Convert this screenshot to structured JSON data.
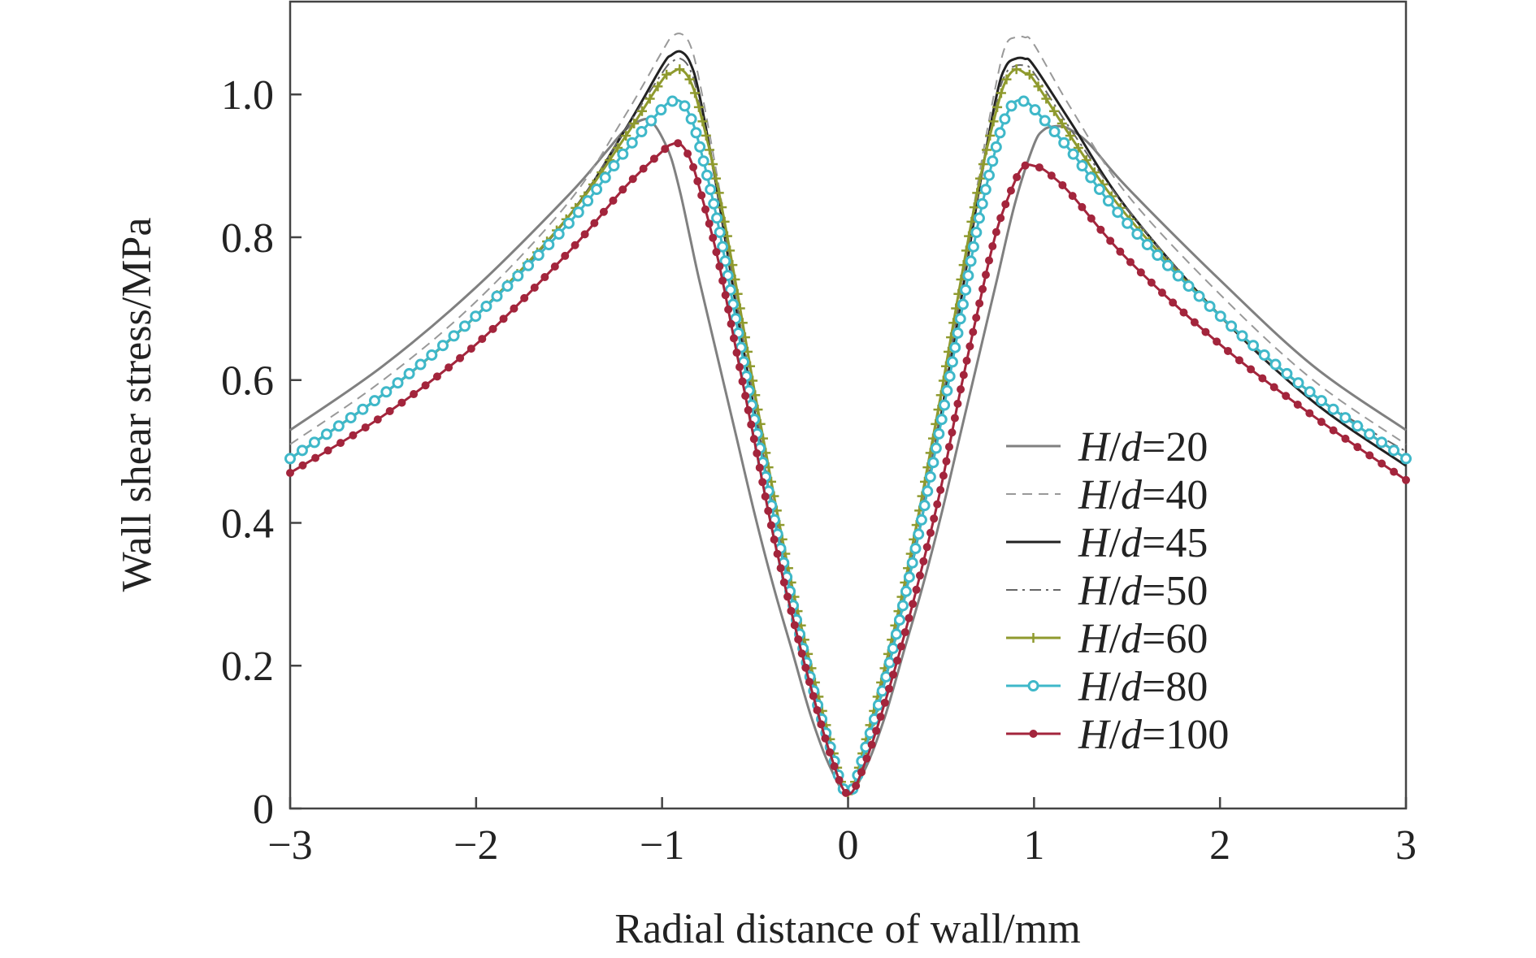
{
  "chart_data": {
    "type": "line",
    "title": "",
    "xlabel": "Radial distance of wall/mm",
    "ylabel": "Wall shear stress/MPa",
    "xlim": [
      -3,
      3
    ],
    "ylim": [
      0,
      1.13
    ],
    "x_ticks": [
      -3,
      -2,
      -1,
      0,
      1,
      2,
      3
    ],
    "x_tick_labels": [
      "−3",
      "−2",
      "−1",
      "0",
      "1",
      "2",
      "3"
    ],
    "y_ticks": [
      0,
      0.2,
      0.4,
      0.6,
      0.8,
      1.0
    ],
    "y_tick_labels": [
      "0",
      "0.2",
      "0.4",
      "0.6",
      "0.8",
      "1.0"
    ],
    "grid": false,
    "legend_position": "right",
    "series": [
      {
        "name": "H/d=20",
        "legend_italic": "H",
        "legend_mid": "/",
        "legend_italic2": "d",
        "legend_rest": "=20",
        "color": "#808080",
        "dash": "solid",
        "marker": "none",
        "x": [
          -3.0,
          -2.5,
          -2.0,
          -1.5,
          -1.3,
          -1.2,
          -1.1,
          -1.05,
          -1.0,
          -0.95,
          -0.9,
          -0.85,
          -0.8,
          -0.7,
          -0.6,
          -0.5,
          -0.4,
          -0.3,
          -0.2,
          -0.1,
          0.0,
          0.1,
          0.2,
          0.3,
          0.4,
          0.5,
          0.6,
          0.7,
          0.8,
          0.9,
          1.0,
          1.05,
          1.1,
          1.15,
          1.2,
          1.3,
          1.5,
          2.0,
          2.5,
          3.0
        ],
        "y": [
          0.53,
          0.62,
          0.73,
          0.86,
          0.92,
          0.95,
          0.965,
          0.96,
          0.94,
          0.91,
          0.86,
          0.8,
          0.74,
          0.63,
          0.52,
          0.41,
          0.31,
          0.22,
          0.13,
          0.06,
          0.02,
          0.06,
          0.13,
          0.22,
          0.31,
          0.41,
          0.52,
          0.63,
          0.74,
          0.85,
          0.93,
          0.95,
          0.955,
          0.955,
          0.95,
          0.93,
          0.87,
          0.74,
          0.62,
          0.53
        ]
      },
      {
        "name": "H/d=40",
        "legend_italic": "H",
        "legend_mid": "/",
        "legend_italic2": "d",
        "legend_rest": "=40",
        "color": "#999999",
        "dash": "dashed",
        "marker": "none",
        "x": [
          -3.0,
          -2.5,
          -2.0,
          -1.5,
          -1.2,
          -1.0,
          -0.95,
          -0.9,
          -0.85,
          -0.8,
          -0.7,
          -0.6,
          -0.5,
          -0.4,
          -0.3,
          -0.2,
          -0.1,
          0.0,
          0.1,
          0.2,
          0.3,
          0.4,
          0.5,
          0.6,
          0.7,
          0.8,
          0.85,
          0.9,
          0.95,
          1.0,
          1.2,
          1.5,
          2.0,
          2.5,
          3.0
        ],
        "y": [
          0.51,
          0.6,
          0.71,
          0.85,
          0.97,
          1.06,
          1.08,
          1.085,
          1.07,
          1.02,
          0.88,
          0.72,
          0.57,
          0.43,
          0.3,
          0.19,
          0.09,
          0.02,
          0.09,
          0.19,
          0.3,
          0.43,
          0.57,
          0.72,
          0.88,
          1.02,
          1.07,
          1.08,
          1.08,
          1.07,
          0.98,
          0.86,
          0.72,
          0.6,
          0.51
        ]
      },
      {
        "name": "H/d=45",
        "legend_italic": "H",
        "legend_mid": "/",
        "legend_italic2": "d",
        "legend_rest": "=45",
        "color": "#222222",
        "dash": "solid",
        "marker": "none",
        "x": [
          -3.0,
          -2.5,
          -2.0,
          -1.5,
          -1.2,
          -1.0,
          -0.95,
          -0.9,
          -0.85,
          -0.8,
          -0.7,
          -0.6,
          -0.5,
          -0.4,
          -0.3,
          -0.2,
          -0.1,
          0.0,
          0.1,
          0.2,
          0.3,
          0.4,
          0.5,
          0.6,
          0.7,
          0.8,
          0.85,
          0.9,
          0.95,
          1.0,
          1.2,
          1.5,
          2.0,
          2.5,
          3.0
        ],
        "y": [
          0.49,
          0.58,
          0.69,
          0.83,
          0.95,
          1.04,
          1.055,
          1.06,
          1.045,
          1.0,
          0.86,
          0.7,
          0.55,
          0.41,
          0.29,
          0.18,
          0.09,
          0.02,
          0.09,
          0.18,
          0.29,
          0.41,
          0.55,
          0.7,
          0.86,
          1.0,
          1.04,
          1.05,
          1.05,
          1.04,
          0.96,
          0.84,
          0.69,
          0.57,
          0.48
        ]
      },
      {
        "name": "H/d=50",
        "legend_italic": "H",
        "legend_mid": "/",
        "legend_italic2": "d",
        "legend_rest": "=50",
        "color": "#666666",
        "dash": "dashdot",
        "marker": "none",
        "x": [
          -3.0,
          -2.5,
          -2.0,
          -1.5,
          -1.2,
          -1.0,
          -0.95,
          -0.9,
          -0.85,
          -0.8,
          -0.7,
          -0.6,
          -0.5,
          -0.4,
          -0.3,
          -0.2,
          -0.1,
          0.0,
          0.1,
          0.2,
          0.3,
          0.4,
          0.5,
          0.6,
          0.7,
          0.8,
          0.85,
          0.9,
          0.95,
          1.0,
          1.2,
          1.5,
          2.0,
          2.5,
          3.0
        ],
        "y": [
          0.49,
          0.58,
          0.69,
          0.83,
          0.95,
          1.03,
          1.045,
          1.05,
          1.035,
          0.99,
          0.86,
          0.71,
          0.56,
          0.42,
          0.3,
          0.19,
          0.09,
          0.02,
          0.09,
          0.19,
          0.3,
          0.42,
          0.56,
          0.71,
          0.86,
          0.99,
          1.03,
          1.04,
          1.04,
          1.03,
          0.95,
          0.84,
          0.69,
          0.58,
          0.5
        ]
      },
      {
        "name": "H/d=60",
        "legend_italic": "H",
        "legend_mid": "/",
        "legend_italic2": "d",
        "legend_rest": "=60",
        "color": "#8f9a2e",
        "dash": "solid",
        "marker": "plus",
        "x": [
          -3.0,
          -2.5,
          -2.0,
          -1.5,
          -1.2,
          -1.0,
          -0.95,
          -0.9,
          -0.85,
          -0.8,
          -0.7,
          -0.6,
          -0.5,
          -0.4,
          -0.3,
          -0.2,
          -0.1,
          0.0,
          0.1,
          0.2,
          0.3,
          0.4,
          0.5,
          0.6,
          0.7,
          0.8,
          0.85,
          0.9,
          0.95,
          1.0,
          1.2,
          1.5,
          2.0,
          2.5,
          3.0
        ],
        "y": [
          0.49,
          0.58,
          0.69,
          0.83,
          0.94,
          1.02,
          1.03,
          1.035,
          1.02,
          0.98,
          0.87,
          0.73,
          0.58,
          0.44,
          0.31,
          0.2,
          0.1,
          0.02,
          0.1,
          0.2,
          0.31,
          0.44,
          0.58,
          0.73,
          0.87,
          0.98,
          1.02,
          1.035,
          1.03,
          1.02,
          0.94,
          0.83,
          0.69,
          0.58,
          0.49
        ]
      },
      {
        "name": "H/d=80",
        "legend_italic": "H",
        "legend_mid": "/",
        "legend_italic2": "d",
        "legend_rest": "=80",
        "color": "#3fb8c9",
        "dash": "solid",
        "marker": "circle",
        "x": [
          -3.0,
          -2.5,
          -2.0,
          -1.5,
          -1.2,
          -1.0,
          -0.95,
          -0.9,
          -0.85,
          -0.8,
          -0.7,
          -0.6,
          -0.5,
          -0.4,
          -0.3,
          -0.2,
          -0.1,
          0.0,
          0.1,
          0.2,
          0.3,
          0.4,
          0.5,
          0.6,
          0.7,
          0.8,
          0.85,
          0.9,
          0.95,
          1.0,
          1.2,
          1.5,
          2.0,
          2.5,
          3.0
        ],
        "y": [
          0.49,
          0.58,
          0.69,
          0.82,
          0.92,
          0.98,
          0.99,
          0.99,
          0.97,
          0.93,
          0.82,
          0.68,
          0.54,
          0.41,
          0.29,
          0.18,
          0.09,
          0.02,
          0.09,
          0.18,
          0.29,
          0.41,
          0.54,
          0.68,
          0.82,
          0.93,
          0.97,
          0.99,
          0.99,
          0.98,
          0.92,
          0.82,
          0.69,
          0.58,
          0.49
        ]
      },
      {
        "name": "H/d=100",
        "legend_italic": "H",
        "legend_mid": "/",
        "legend_italic2": "d",
        "legend_rest": "=100",
        "color": "#a3253c",
        "dash": "solid",
        "marker": "dot",
        "x": [
          -3.0,
          -2.5,
          -2.0,
          -1.5,
          -1.2,
          -1.0,
          -0.95,
          -0.9,
          -0.85,
          -0.8,
          -0.7,
          -0.6,
          -0.5,
          -0.4,
          -0.3,
          -0.2,
          -0.1,
          0.0,
          0.1,
          0.2,
          0.3,
          0.4,
          0.5,
          0.6,
          0.7,
          0.8,
          0.9,
          0.95,
          1.0,
          1.05,
          1.1,
          1.2,
          1.5,
          2.0,
          2.5,
          3.0
        ],
        "y": [
          0.47,
          0.55,
          0.65,
          0.78,
          0.87,
          0.92,
          0.93,
          0.93,
          0.91,
          0.87,
          0.77,
          0.64,
          0.51,
          0.38,
          0.27,
          0.17,
          0.08,
          0.02,
          0.07,
          0.15,
          0.24,
          0.34,
          0.45,
          0.58,
          0.7,
          0.81,
          0.88,
          0.9,
          0.9,
          0.895,
          0.885,
          0.86,
          0.77,
          0.65,
          0.55,
          0.46
        ]
      }
    ]
  }
}
